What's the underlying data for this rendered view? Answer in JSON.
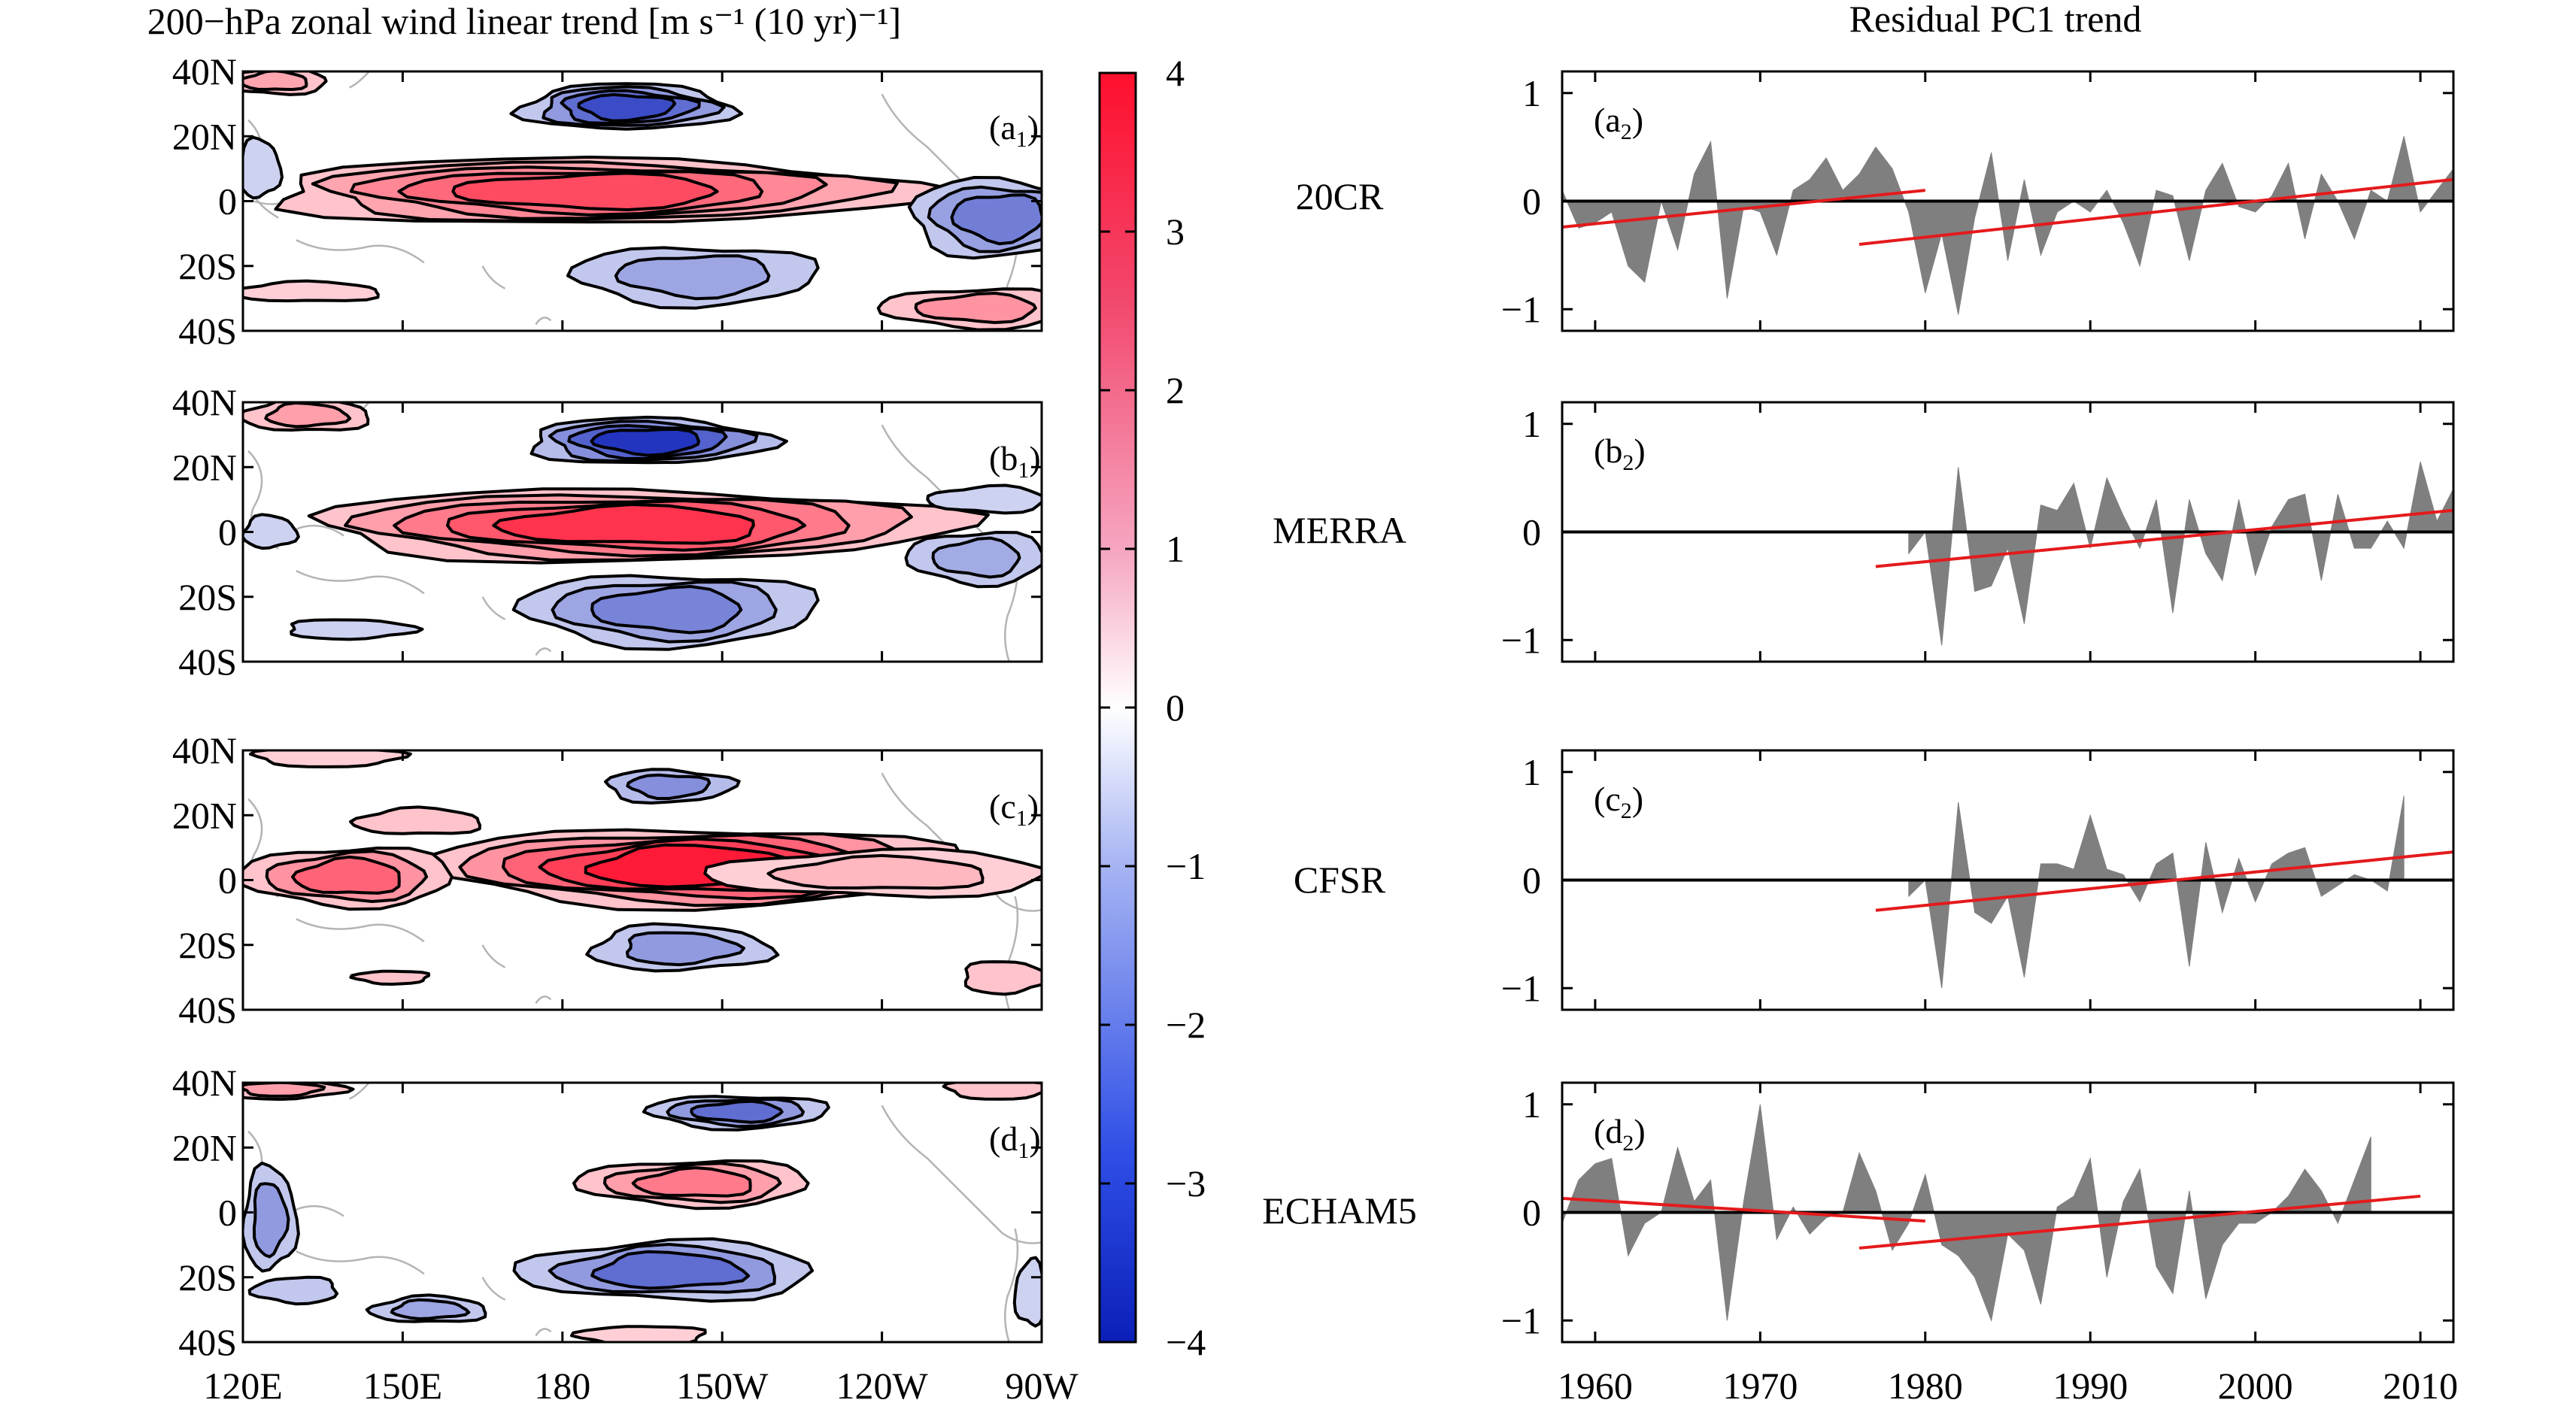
{
  "chart_data": [
    {
      "type": "heatmap",
      "title": "200−hPa zonal wind linear trend [m s⁻¹ (10 yr)⁻¹]",
      "x_ticks": [
        "120E",
        "150E",
        "180",
        "150W",
        "120W",
        "90W"
      ],
      "x_tick_values": [
        120,
        150,
        180,
        210,
        240,
        270
      ],
      "xlim": [
        120,
        270
      ],
      "y_ticks": [
        "40N",
        "20N",
        "0",
        "20S",
        "40S"
      ],
      "y_tick_values": [
        40,
        20,
        0,
        -20,
        -40
      ],
      "ylim": [
        -40,
        40
      ],
      "colorbar": {
        "ticks": [
          "4",
          "3",
          "2",
          "1",
          "0",
          "−1",
          "−2",
          "−3",
          "−4"
        ],
        "range": [
          -4,
          4
        ],
        "colors": {
          "max": "#ff0f2d",
          "mid": "#ffffff",
          "min": "#0a1fb8"
        }
      },
      "panels": [
        {
          "label": "a",
          "sub": "1",
          "features": [
            {
              "lon": 192,
              "lat": 29,
              "rx": 20,
              "ry": 7,
              "levels": [
                -1,
                -1.8,
                -2.6,
                -3.2
              ]
            },
            {
              "lon": 185,
              "lat": 3,
              "rx": 62,
              "ry": 10,
              "levels": [
                1,
                1.5,
                2,
                2.5,
                3
              ]
            },
            {
              "lon": 262,
              "lat": -5,
              "rx": 17,
              "ry": 12,
              "levels": [
                -1,
                -1.7,
                -2.3
              ]
            },
            {
              "lon": 205,
              "lat": -23,
              "rx": 23,
              "ry": 9,
              "levels": [
                -1,
                -1.6
              ]
            },
            {
              "lon": 258,
              "lat": -33,
              "rx": 18,
              "ry": 6,
              "levels": [
                1,
                1.8
              ]
            },
            {
              "lon": 126,
              "lat": 37,
              "rx": 10,
              "ry": 4,
              "levels": [
                1,
                1.5
              ]
            },
            {
              "lon": 132,
              "lat": -28,
              "rx": 14,
              "ry": 3,
              "levels": [
                0.8
              ]
            },
            {
              "lon": 123,
              "lat": 10,
              "rx": 4,
              "ry": 9,
              "levels": [
                -0.8
              ]
            }
          ]
        },
        {
          "label": "b",
          "sub": "1",
          "features": [
            {
              "lon": 196,
              "lat": 28,
              "rx": 23,
              "ry": 7,
              "levels": [
                -1.2,
                -2,
                -2.8,
                -3.6
              ]
            },
            {
              "lon": 193,
              "lat": 2,
              "rx": 61,
              "ry": 11,
              "levels": [
                1,
                1.6,
                2.2,
                2.8,
                3.4
              ]
            },
            {
              "lon": 200,
              "lat": -24,
              "rx": 28,
              "ry": 11,
              "levels": [
                -1,
                -1.6,
                -2.2
              ]
            },
            {
              "lon": 258,
              "lat": -8,
              "rx": 13,
              "ry": 8,
              "levels": [
                -1,
                -1.5
              ]
            },
            {
              "lon": 260,
              "lat": 10,
              "rx": 11,
              "ry": 4,
              "levels": [
                -0.8
              ]
            },
            {
              "lon": 132,
              "lat": 36,
              "rx": 12,
              "ry": 5,
              "levels": [
                1,
                1.6
              ]
            },
            {
              "lon": 125,
              "lat": 0,
              "rx": 5,
              "ry": 5,
              "levels": [
                -0.8
              ]
            },
            {
              "lon": 140,
              "lat": -30,
              "rx": 12,
              "ry": 3,
              "levels": [
                -0.8
              ]
            }
          ]
        },
        {
          "label": "c",
          "sub": "1",
          "features": [
            {
              "lon": 200,
              "lat": 29,
              "rx": 12,
              "ry": 5,
              "levels": [
                -1.2,
                -2
              ]
            },
            {
              "lon": 205,
              "lat": 4,
              "rx": 50,
              "ry": 12,
              "levels": [
                1,
                1.8,
                2.6,
                3.2,
                3.8
              ]
            },
            {
              "lon": 140,
              "lat": 1,
              "rx": 20,
              "ry": 9,
              "levels": [
                1,
                1.8,
                2.6
              ]
            },
            {
              "lon": 240,
              "lat": 2,
              "rx": 32,
              "ry": 7,
              "levels": [
                0.8,
                1.2
              ]
            },
            {
              "lon": 153,
              "lat": 18,
              "rx": 12,
              "ry": 4,
              "levels": [
                1
              ]
            },
            {
              "lon": 202,
              "lat": -21,
              "rx": 17,
              "ry": 7,
              "levels": [
                -1,
                -1.8
              ]
            },
            {
              "lon": 263,
              "lat": -30,
              "rx": 8,
              "ry": 5,
              "levels": [
                1
              ]
            },
            {
              "lon": 136,
              "lat": 38,
              "rx": 14,
              "ry": 3,
              "levels": [
                0.8
              ]
            },
            {
              "lon": 148,
              "lat": -30,
              "rx": 7,
              "ry": 2,
              "levels": [
                1
              ]
            }
          ]
        },
        {
          "label": "d",
          "sub": "1",
          "features": [
            {
              "lon": 213,
              "lat": 31,
              "rx": 17,
              "ry": 5,
              "levels": [
                -1,
                -1.8,
                -2.6
              ]
            },
            {
              "lon": 205,
              "lat": 9,
              "rx": 22,
              "ry": 7,
              "levels": [
                1,
                1.6,
                2.2
              ]
            },
            {
              "lon": 200,
              "lat": -18,
              "rx": 28,
              "ry": 9,
              "levels": [
                -1,
                -1.8,
                -2.6
              ]
            },
            {
              "lon": 155,
              "lat": -30,
              "rx": 11,
              "ry": 4,
              "levels": [
                -1,
                -1.6
              ]
            },
            {
              "lon": 125,
              "lat": -2,
              "rx": 5,
              "ry": 16,
              "levels": [
                -1,
                -1.8
              ]
            },
            {
              "lon": 127,
              "lat": 38,
              "rx": 12,
              "ry": 3,
              "levels": [
                1,
                1.6
              ]
            },
            {
              "lon": 262,
              "lat": 38,
              "rx": 10,
              "ry": 3,
              "levels": [
                1
              ]
            },
            {
              "lon": 195,
              "lat": -38,
              "rx": 12,
              "ry": 3,
              "levels": [
                0.8
              ]
            },
            {
              "lon": 130,
              "lat": -24,
              "rx": 8,
              "ry": 4,
              "levels": [
                -1
              ]
            },
            {
              "lon": 268,
              "lat": -25,
              "rx": 3,
              "ry": 10,
              "levels": [
                -0.8
              ]
            }
          ]
        }
      ]
    },
    {
      "type": "area",
      "title": "Residual PC1 trend",
      "x_ticks": [
        "1960",
        "1970",
        "1980",
        "1990",
        "2000",
        "2010"
      ],
      "x_tick_values": [
        1960,
        1970,
        1980,
        1990,
        2000,
        2010
      ],
      "xlim": [
        1958,
        2012
      ],
      "y_ticks": [
        "1",
        "0",
        "−1"
      ],
      "y_tick_values": [
        1,
        0,
        -1
      ],
      "ylim": [
        -1.2,
        1.2
      ],
      "panels": [
        {
          "label": "a",
          "sub": "2",
          "dataset": "20CR",
          "series": {
            "name": "residual PC1",
            "x": [
              1958,
              1959,
              1960,
              1961,
              1962,
              1963,
              1964,
              1965,
              1966,
              1967,
              1968,
              1969,
              1970,
              1971,
              1972,
              1973,
              1974,
              1975,
              1976,
              1977,
              1978,
              1979,
              1980,
              1981,
              1982,
              1983,
              1984,
              1985,
              1986,
              1987,
              1988,
              1989,
              1990,
              1991,
              1992,
              1993,
              1994,
              1995,
              1996,
              1997,
              1998,
              1999,
              2000,
              2001,
              2002,
              2003,
              2004,
              2005,
              2006,
              2007,
              2008,
              2009,
              2010,
              2011,
              2012
            ],
            "values": [
              0.1,
              -0.25,
              -0.2,
              -0.1,
              -0.6,
              -0.75,
              0.0,
              -0.45,
              0.25,
              0.55,
              -0.9,
              -0.05,
              -0.1,
              -0.5,
              0.1,
              0.2,
              0.4,
              0.1,
              0.25,
              0.5,
              0.3,
              -0.1,
              -0.85,
              -0.3,
              -1.05,
              -0.15,
              0.45,
              -0.55,
              0.2,
              -0.5,
              -0.1,
              0.0,
              -0.1,
              0.1,
              -0.2,
              -0.6,
              0.1,
              0.05,
              -0.55,
              0.1,
              0.35,
              -0.05,
              -0.1,
              0.05,
              0.35,
              -0.35,
              0.25,
              0.0,
              -0.35,
              0.1,
              0.0,
              0.6,
              -0.1,
              0.1,
              0.3
            ]
          },
          "trends": [
            {
              "x": [
                1958,
                1980
              ],
              "y": [
                -0.24,
                0.1
              ]
            },
            {
              "x": [
                1976,
                2012
              ],
              "y": [
                -0.4,
                0.2
              ]
            }
          ]
        },
        {
          "label": "b",
          "sub": "2",
          "dataset": "MERRA",
          "series": {
            "name": "residual PC1",
            "x": [
              1979,
              1980,
              1981,
              1982,
              1983,
              1984,
              1985,
              1986,
              1987,
              1988,
              1989,
              1990,
              1991,
              1992,
              1993,
              1994,
              1995,
              1996,
              1997,
              1998,
              1999,
              2000,
              2001,
              2002,
              2003,
              2004,
              2005,
              2006,
              2007,
              2008,
              2009,
              2010,
              2011,
              2012
            ],
            "values": [
              -0.2,
              0.0,
              -1.05,
              0.6,
              -0.55,
              -0.5,
              -0.15,
              -0.85,
              0.25,
              0.2,
              0.45,
              -0.15,
              0.5,
              0.15,
              -0.15,
              0.3,
              -0.75,
              0.3,
              -0.2,
              -0.45,
              0.3,
              -0.4,
              0.05,
              0.3,
              0.35,
              -0.45,
              0.35,
              -0.15,
              -0.15,
              0.1,
              -0.15,
              0.65,
              0.1,
              0.4
            ]
          },
          "trends": [
            {
              "x": [
                1977,
                2012
              ],
              "y": [
                -0.32,
                0.2
              ]
            }
          ]
        },
        {
          "label": "c",
          "sub": "2",
          "dataset": "CFSR",
          "series": {
            "name": "residual PC1",
            "x": [
              1979,
              1980,
              1981,
              1982,
              1983,
              1984,
              1985,
              1986,
              1987,
              1988,
              1989,
              1990,
              1991,
              1992,
              1993,
              1994,
              1995,
              1996,
              1997,
              1998,
              1999,
              2000,
              2001,
              2002,
              2003,
              2004,
              2005,
              2006,
              2007,
              2008,
              2009
            ],
            "values": [
              -0.15,
              0.0,
              -1.0,
              0.72,
              -0.3,
              -0.4,
              -0.15,
              -0.9,
              0.15,
              0.15,
              0.1,
              0.6,
              0.1,
              0.05,
              -0.2,
              0.15,
              0.25,
              -0.8,
              0.35,
              -0.3,
              0.2,
              -0.2,
              0.15,
              0.25,
              0.3,
              -0.15,
              -0.05,
              0.05,
              0.0,
              -0.1,
              0.78
            ]
          },
          "trends": [
            {
              "x": [
                1977,
                2012
              ],
              "y": [
                -0.28,
                0.26
              ]
            }
          ]
        },
        {
          "label": "d",
          "sub": "2",
          "dataset": "ECHAM5",
          "series": {
            "name": "residual PC1",
            "x": [
              1958,
              1959,
              1960,
              1961,
              1962,
              1963,
              1964,
              1965,
              1966,
              1967,
              1968,
              1969,
              1970,
              1971,
              1972,
              1973,
              1974,
              1975,
              1976,
              1977,
              1978,
              1979,
              1980,
              1981,
              1982,
              1983,
              1984,
              1985,
              1986,
              1987,
              1988,
              1989,
              1990,
              1991,
              1992,
              1993,
              1994,
              1995,
              1996,
              1997,
              1998,
              1999,
              2000,
              2001,
              2002,
              2003,
              2004,
              2005,
              2006,
              2007
            ],
            "values": [
              -0.1,
              0.3,
              0.45,
              0.5,
              -0.4,
              -0.1,
              0.0,
              0.6,
              0.1,
              0.3,
              -1.0,
              0.1,
              1.0,
              -0.25,
              0.05,
              -0.2,
              -0.05,
              0.0,
              0.55,
              0.2,
              -0.35,
              -0.1,
              0.35,
              -0.3,
              -0.4,
              -0.6,
              -1.0,
              -0.2,
              -0.35,
              -0.85,
              0.05,
              0.15,
              0.5,
              -0.6,
              0.1,
              0.4,
              -0.5,
              -0.75,
              0.2,
              -0.8,
              -0.3,
              -0.1,
              -0.1,
              0.0,
              0.15,
              0.4,
              0.2,
              -0.1,
              0.3,
              0.7
            ]
          },
          "trends": [
            {
              "x": [
                1958,
                1980
              ],
              "y": [
                0.13,
                -0.08
              ]
            },
            {
              "x": [
                1976,
                2010
              ],
              "y": [
                -0.33,
                0.15
              ]
            }
          ]
        }
      ]
    }
  ],
  "middle_labels": [
    "20CR",
    "MERRA",
    "CFSR",
    "ECHAM5"
  ],
  "colors": {
    "area_fill": "#7f7f7f",
    "trend_line": "#e41a1c",
    "contour": "#000000",
    "coastline": "#b4b4b4",
    "frame": "#000000"
  }
}
